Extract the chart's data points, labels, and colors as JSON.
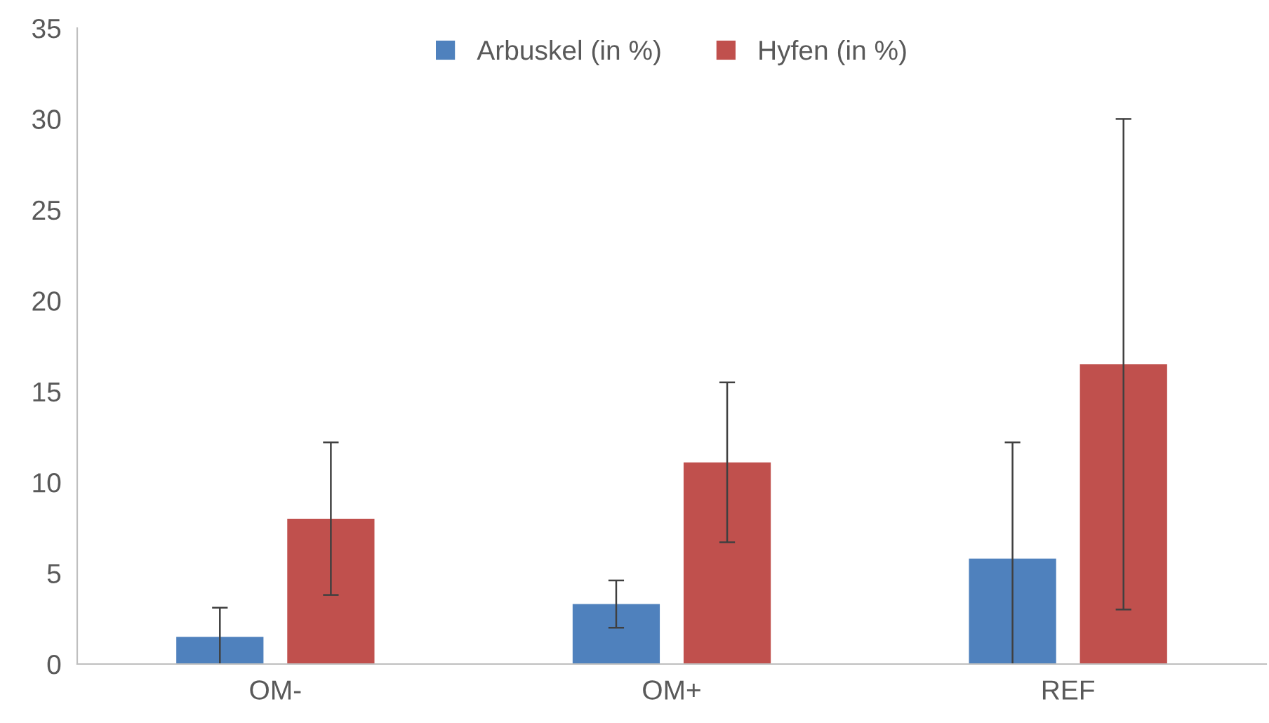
{
  "chart_data": {
    "type": "bar",
    "categories": [
      "OM-",
      "OM+",
      "REF"
    ],
    "series": [
      {
        "name": "Arbuskel (in %)",
        "color": "#4f81bd",
        "values": [
          1.5,
          3.3,
          5.8
        ],
        "errors": [
          1.6,
          1.3,
          6.4
        ]
      },
      {
        "name": "Hyfen (in %)",
        "color": "#c0504d",
        "values": [
          8.0,
          11.1,
          16.5
        ],
        "errors": [
          4.2,
          4.4,
          13.5
        ]
      }
    ],
    "ylim": [
      0,
      35
    ],
    "yticks": [
      0,
      5,
      10,
      15,
      20,
      25,
      30,
      35
    ],
    "grid": false,
    "legend": "top"
  }
}
